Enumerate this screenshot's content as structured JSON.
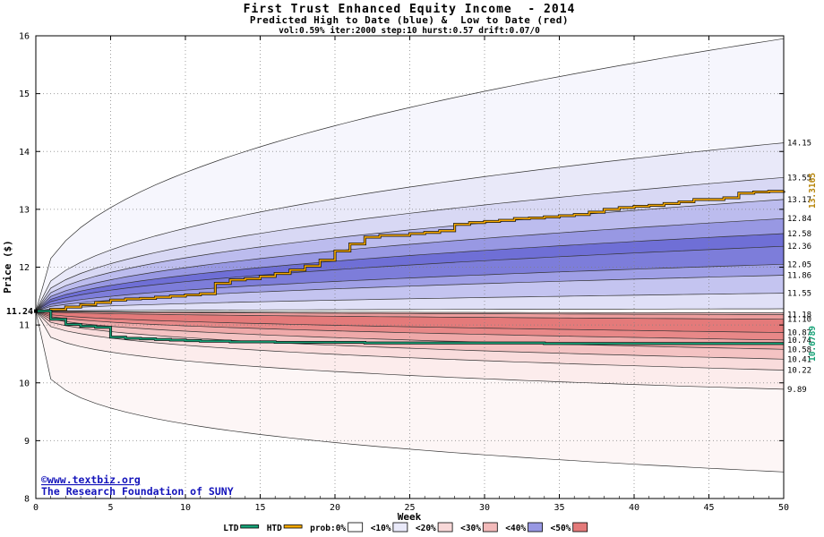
{
  "header": {
    "title": "First Trust Enhanced Equity Income  - 2014",
    "subtitle": "Predicted High to Date (blue) &  Low to Date (red)",
    "params": "vol:0.59% iter:2000 step:10 hurst:0.57 drift:0.07/0"
  },
  "axes": {
    "x_label": "Week",
    "y_label": "Price ($)",
    "x_ticks": [
      0,
      5,
      10,
      15,
      20,
      25,
      30,
      35,
      40,
      45,
      50
    ],
    "y_ticks": [
      8,
      9,
      10,
      11,
      12,
      13,
      14,
      15,
      16
    ],
    "x_range": [
      0,
      50
    ],
    "y_range": [
      8,
      16
    ],
    "grid": true
  },
  "annotations": {
    "start_label": "11.24",
    "start_value": 11.24,
    "htd_end_label": "13.3165",
    "ltd_end_label": "10.6789",
    "htd_label_color": "#b8860b",
    "ltd_label_color": "#17a277",
    "watermark_line1": "©www.textbiz.org",
    "watermark_line2": "The Research Foundation of SUNY",
    "watermark_color": "#1414bb"
  },
  "right_axis_labels": [
    14.15,
    13.55,
    13.17,
    12.84,
    12.58,
    12.36,
    12.05,
    11.86,
    11.55,
    11.18,
    11.1,
    10.87,
    10.74,
    10.58,
    10.41,
    10.22,
    9.89
  ],
  "legend": {
    "items": [
      {
        "label": "LTD",
        "type": "line",
        "color": "#17a277"
      },
      {
        "label": "HTD",
        "type": "line",
        "color": "#f5a800"
      },
      {
        "label": "prob:0%",
        "type": "box",
        "color": "#ffffff"
      },
      {
        "label": "<10%",
        "type": "box",
        "color": "#e9e9f9"
      },
      {
        "label": "<20%",
        "type": "box",
        "color": "#f8d8d8"
      },
      {
        "label": "<30%",
        "type": "box",
        "color": "#f3baba"
      },
      {
        "label": "<40%",
        "type": "box",
        "color": "#9898e3"
      },
      {
        "label": "<50%",
        "type": "box",
        "color": "#e47a7a"
      }
    ]
  },
  "chart_data": {
    "type": "area",
    "subtype": "monte-carlo-probability-fan-with-step-lines",
    "title": "First Trust Enhanced Equity Income - 2014",
    "xlabel": "Week",
    "ylabel": "Price ($)",
    "xlim": [
      0,
      50
    ],
    "ylim": [
      8,
      16
    ],
    "grid": true,
    "start_price": 11.24,
    "htd_final": 13.3165,
    "ltd_final": 10.6789,
    "upper_fan": {
      "description": "Predicted High-to-Date quantile boundaries (blue), values at week 50, grown from start_price as start+(final-start)*(week/50)^exponent",
      "boundaries_week50": [
        15.95,
        14.15,
        13.55,
        13.17,
        12.84,
        12.58,
        12.36,
        12.05,
        11.86,
        11.55,
        11.28
      ],
      "exponents": [
        0.42,
        0.44,
        0.45,
        0.46,
        0.47,
        0.48,
        0.49,
        0.5,
        0.52,
        0.54,
        0.56
      ],
      "band_colors": [
        "#f6f6fd",
        "#e9e9f9",
        "#d8d8f4",
        "#bcbcee",
        "#9898e3",
        "#6f6fd6",
        "#7d7dda",
        "#9f9fe6",
        "#c4c4f0",
        "#e0e0f7"
      ]
    },
    "lower_fan": {
      "description": "Predicted Low-to-Date quantile boundaries (red), values at week 50",
      "boundaries_week50": [
        11.21,
        11.18,
        11.1,
        10.87,
        10.74,
        10.58,
        10.41,
        10.22,
        9.89,
        8.46
      ],
      "exponents": [
        0.56,
        0.52,
        0.5,
        0.45,
        0.42,
        0.4,
        0.37,
        0.34,
        0.28,
        0.22
      ],
      "band_colors": [
        "#f3bcbc",
        "#ec9c9c",
        "#e47a7a",
        "#e88888",
        "#efa9a9",
        "#f4c3c3",
        "#f9dcdc",
        "#fcecec",
        "#fdf6f6"
      ]
    },
    "series": [
      {
        "name": "HTD",
        "color": "#f5a800",
        "edge": "#111111",
        "step": true,
        "values": [
          11.24,
          11.27,
          11.31,
          11.35,
          11.39,
          11.43,
          11.45,
          11.46,
          11.48,
          11.5,
          11.52,
          11.54,
          11.72,
          11.78,
          11.8,
          11.84,
          11.89,
          11.95,
          12.02,
          12.12,
          12.28,
          12.4,
          12.52,
          12.55,
          12.55,
          12.58,
          12.6,
          12.63,
          12.74,
          12.77,
          12.79,
          12.81,
          12.84,
          12.85,
          12.87,
          12.89,
          12.91,
          12.95,
          13.0,
          13.03,
          13.05,
          13.07,
          13.1,
          13.13,
          13.17,
          13.17,
          13.2,
          13.28,
          13.3,
          13.31,
          13.32
        ]
      },
      {
        "name": "LTD",
        "color": "#17a277",
        "edge": "#111111",
        "step": true,
        "values": [
          11.24,
          11.1,
          11.01,
          10.98,
          10.96,
          10.79,
          10.77,
          10.76,
          10.75,
          10.74,
          10.73,
          10.72,
          10.72,
          10.71,
          10.71,
          10.71,
          10.7,
          10.7,
          10.7,
          10.7,
          10.7,
          10.7,
          10.69,
          10.69,
          10.69,
          10.69,
          10.69,
          10.69,
          10.69,
          10.69,
          10.69,
          10.69,
          10.69,
          10.69,
          10.68,
          10.68,
          10.68,
          10.68,
          10.68,
          10.68,
          10.68,
          10.68,
          10.68,
          10.68,
          10.68,
          10.68,
          10.68,
          10.68,
          10.68,
          10.68,
          10.68
        ]
      }
    ]
  }
}
